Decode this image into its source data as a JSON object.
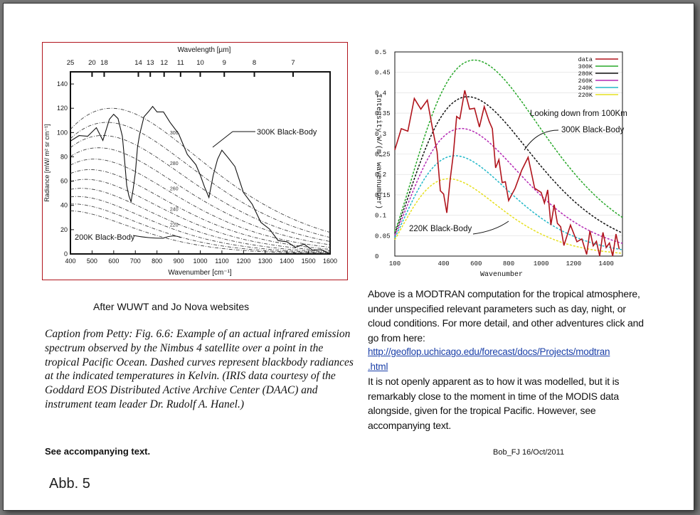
{
  "chart_data": [
    {
      "type": "line",
      "title": "",
      "xlabel": "Wavenumber [cm⁻¹]",
      "x2label": "Wavelength [µm]",
      "ylabel": "Radiance [mW/ m² sr cm⁻¹]",
      "xlim": [
        400,
        1600
      ],
      "ylim": [
        0,
        150
      ],
      "x_ticks": [
        "400",
        "500",
        "600",
        "700",
        "800",
        "900",
        "1000",
        "1100",
        "1200",
        "1300",
        "1400",
        "1500",
        "1600"
      ],
      "y_ticks": [
        "0",
        "20",
        "40",
        "60",
        "80",
        "100",
        "120",
        "140"
      ],
      "wavelength_ticks": [
        {
          "label": "25",
          "wn": 400
        },
        {
          "label": "20",
          "wn": 500
        },
        {
          "label": "18",
          "wn": 556
        },
        {
          "label": "14",
          "wn": 714
        },
        {
          "label": "13",
          "wn": 769
        },
        {
          "label": "12",
          "wn": 833
        },
        {
          "label": "11",
          "wn": 909
        },
        {
          "label": "10",
          "wn": 1000
        },
        {
          "label": "9",
          "wn": 1111
        },
        {
          "label": "8",
          "wn": 1250
        },
        {
          "label": "7",
          "wn": 1429
        }
      ],
      "blackbody_temperatures_K": [
        200,
        210,
        220,
        230,
        240,
        250,
        260,
        270,
        280,
        290,
        300
      ],
      "curve_labels": [
        "300",
        "280",
        "260",
        "240",
        "220"
      ],
      "annotations": [
        "300K Black-Body",
        "200K Black-Body"
      ],
      "measured_series": {
        "name": "Nimbus 4 IRIS spectrum",
        "x": [
          400,
          440,
          480,
          520,
          550,
          580,
          600,
          620,
          640,
          650,
          660,
          670,
          680,
          690,
          700,
          710,
          720,
          740,
          760,
          780,
          800,
          830,
          860,
          900,
          940,
          980,
          1000,
          1020,
          1040,
          1060,
          1080,
          1100,
          1130,
          1160,
          1200,
          1240,
          1280,
          1320,
          1360,
          1400,
          1440,
          1480,
          1520,
          1560,
          1600
        ],
        "y": [
          93,
          96,
          100,
          104,
          95,
          108,
          115,
          110,
          100,
          78,
          58,
          45,
          43,
          52,
          70,
          88,
          100,
          110,
          117,
          120,
          120,
          117,
          110,
          96,
          82,
          72,
          68,
          55,
          48,
          62,
          78,
          84,
          82,
          72,
          52,
          38,
          26,
          19,
          14,
          10,
          7,
          5,
          3,
          2,
          1
        ]
      }
    },
    {
      "type": "line",
      "title": "",
      "xlabel": "Wavenumber",
      "ylabel": "Intensity W/(m² wavenumber)",
      "xlim": [
        100,
        1500
      ],
      "ylim": [
        0,
        0.5
      ],
      "x_ticks": [
        "100",
        "400",
        "600",
        "800",
        "1000",
        "1200",
        "1400"
      ],
      "y_ticks": [
        "0",
        "0.05",
        "0.1",
        "0.15",
        "0.2",
        "0.25",
        "0.3",
        "0.35",
        "0.4",
        "0.45",
        "0.5"
      ],
      "series": [
        {
          "name": "data",
          "color": "#b0141c"
        },
        {
          "name": "300K",
          "color": "#28a82a"
        },
        {
          "name": "280K",
          "color": "#101010"
        },
        {
          "name": "260K",
          "color": "#b428b4"
        },
        {
          "name": "240K",
          "color": "#22b8c8"
        },
        {
          "name": "220K",
          "color": "#e6e020"
        }
      ],
      "legend_labels": [
        "data",
        "300K",
        "280K",
        "260K",
        "240K",
        "220K"
      ],
      "legend_position": "top-right",
      "annotations": [
        "Looking down from 100Km",
        "300K Black-Body",
        "220K Black-Body"
      ],
      "measured_series": {
        "name": "MODTRAN",
        "x": [
          100,
          140,
          180,
          220,
          260,
          300,
          330,
          360,
          380,
          400,
          420,
          440,
          460,
          480,
          500,
          530,
          560,
          590,
          620,
          650,
          680,
          700,
          720,
          740,
          760,
          780,
          800,
          840,
          880,
          920,
          960,
          1000,
          1020,
          1040,
          1060,
          1080,
          1100,
          1120,
          1140,
          1180,
          1220,
          1250,
          1280,
          1300,
          1320,
          1340,
          1360,
          1380,
          1400,
          1420,
          1440,
          1460,
          1480
        ],
        "y": [
          0.26,
          0.3,
          0.33,
          0.35,
          0.36,
          0.37,
          0.34,
          0.22,
          0.16,
          0.14,
          0.13,
          0.15,
          0.25,
          0.33,
          0.36,
          0.37,
          0.36,
          0.35,
          0.34,
          0.33,
          0.33,
          0.3,
          0.24,
          0.2,
          0.18,
          0.17,
          0.16,
          0.13,
          0.21,
          0.23,
          0.19,
          0.12,
          0.13,
          0.15,
          0.1,
          0.09,
          0.08,
          0.06,
          0.05,
          0.04,
          0.035,
          0.03,
          0.028,
          0.026,
          0.025,
          0.024,
          0.023,
          0.022,
          0.021,
          0.02,
          0.019,
          0.018,
          0.017
        ]
      }
    }
  ],
  "left_panel": {
    "credit": "After WUWT and Jo Nova websites",
    "caption": "Caption from Petty: Fig. 6.6: Example of an actual infrared emission spectrum observed by the Nimbus 4 satellite over a point in the tropical Pacific Ocean. Dashed curves represent blackbody radiances at the indicated temperatures in Kelvin. (IRIS data courtesy of the Goddard EOS Distributed Active Archive Center (DAAC) and instrument team leader Dr. Rudolf A. Hanel.)",
    "see_text": "See accompanying text.",
    "figure_label": "Abb. 5"
  },
  "right_panel": {
    "para1": "Above is a MODTRAN computation for the tropical atmosphere, under unspecified relevant parameters such as day, night, or cloud conditions.  For more detail, and other adventures click and go from here:",
    "link_line1": "http://geoflop.uchicago.edu/forecast/docs/Projects/modtran",
    "link_line2": ".html",
    "para2": "It is not openly apparent as to how it was modelled, but it is remarkably close to the moment in time of the MODIS data alongside, given for the tropical Pacific.  However, see accompanying text.",
    "signature": "Bob_FJ  16/Oct/2011"
  }
}
